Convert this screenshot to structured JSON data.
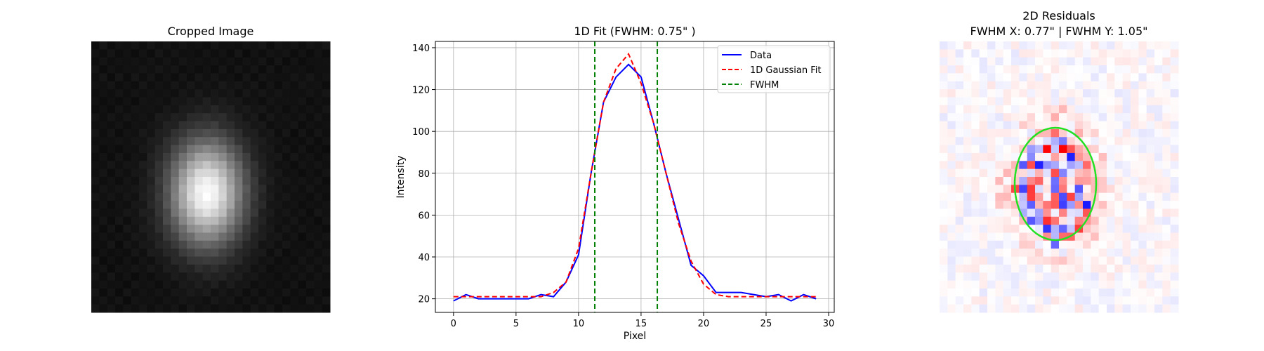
{
  "chart_data": [
    {
      "type": "heatmap",
      "title": "Cropped Image",
      "colormap": "gray",
      "description": "grayscale cutout of a bright elongated source, peak slightly left of center, surrounded by dark checkered background noise"
    },
    {
      "type": "line",
      "title": "1D Fit (FWHM: 0.75\" )",
      "xlabel": "Pixel",
      "ylabel": "Intensity",
      "xlim": [
        -1.45,
        30.45
      ],
      "ylim": [
        13.5,
        143
      ],
      "xticks": [
        0,
        5,
        10,
        15,
        20,
        25,
        30
      ],
      "yticks": [
        20,
        40,
        60,
        80,
        100,
        120,
        140
      ],
      "grid": true,
      "legend_position": "top-right",
      "x": [
        0,
        1,
        2,
        3,
        4,
        5,
        6,
        7,
        8,
        9,
        10,
        11,
        12,
        13,
        14,
        15,
        16,
        17,
        18,
        19,
        20,
        21,
        22,
        23,
        24,
        25,
        26,
        27,
        28,
        29
      ],
      "series": [
        {
          "name": "Data",
          "color": "#0000ff",
          "style": "solid",
          "values": [
            19,
            22,
            20,
            20,
            20,
            20,
            20,
            22,
            21,
            28,
            41,
            80,
            114,
            126,
            132,
            126,
            104,
            80,
            58,
            36,
            31,
            23,
            23,
            23,
            22,
            21,
            22,
            19,
            22,
            20
          ]
        },
        {
          "name": "1D Gaussian Fit",
          "color": "#ff0000",
          "style": "dashed",
          "values": [
            21,
            21,
            21,
            21,
            21,
            21,
            21,
            21,
            23,
            28,
            44,
            80,
            114,
            130,
            137,
            123,
            104,
            80,
            56,
            38,
            27,
            22,
            21,
            21,
            21,
            21,
            21,
            21,
            21,
            21
          ]
        }
      ],
      "vlines": {
        "name": "FWHM",
        "color": "#008000",
        "style": "dashed",
        "x": [
          11.3,
          16.3
        ]
      }
    },
    {
      "type": "heatmap",
      "title": "2D Residuals\nFWHM X: 0.77\"  |  FWHM Y: 1.05\"",
      "title_line1": "2D Residuals",
      "title_line2": "FWHM X: 0.77\"  |  FWHM Y: 1.05\"",
      "colormap": "bwr",
      "ellipse_color": "#22e022",
      "description": "blue/white/red residual map with strong residuals near center, green fitted ellipse overlay"
    }
  ]
}
